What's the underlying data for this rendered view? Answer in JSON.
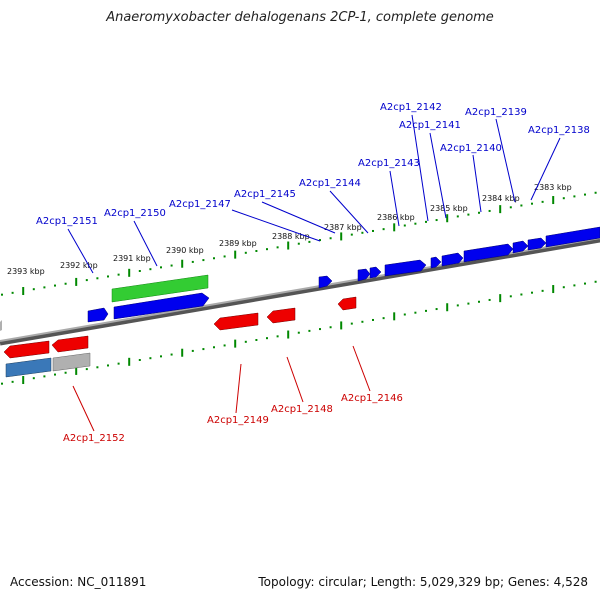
{
  "title": "Anaeromyxobacter dehalogenans 2CP-1, complete genome",
  "footer": {
    "accession": "Accession: NC_011891",
    "topology": "Topology: circular; Length: 5,029,329 bp; Genes: 4,528"
  },
  "kbp_labels": [
    "2393 kbp",
    "2392 kbp",
    "2391 kbp",
    "2390 kbp",
    "2389 kbp",
    "2388 kbp",
    "2387 kbp",
    "2386 kbp",
    "2385 kbp",
    "2384 kbp",
    "2383 kbp"
  ],
  "forward_gene_labels": [
    "A2cp1_2151",
    "A2cp1_2150",
    "A2cp1_2147",
    "A2cp1_2145",
    "A2cp1_2144",
    "A2cp1_2143",
    "A2cp1_2142",
    "A2cp1_2141",
    "A2cp1_2140",
    "A2cp1_2139",
    "A2cp1_2138"
  ],
  "reverse_gene_labels": [
    "A2cp1_2152",
    "A2cp1_2149",
    "A2cp1_2148",
    "A2cp1_2146"
  ],
  "colors": {
    "forward": "#0000cc",
    "reverse": "#cc0000",
    "forward_gene": "#0000ee",
    "reverse_gene": "#ee0000",
    "rna_gene": "#33cc33",
    "steelblue_gene": "#3a78b8",
    "gray_gene": "#b0b0b0",
    "tick": "#008800",
    "backbone": "#888888"
  }
}
